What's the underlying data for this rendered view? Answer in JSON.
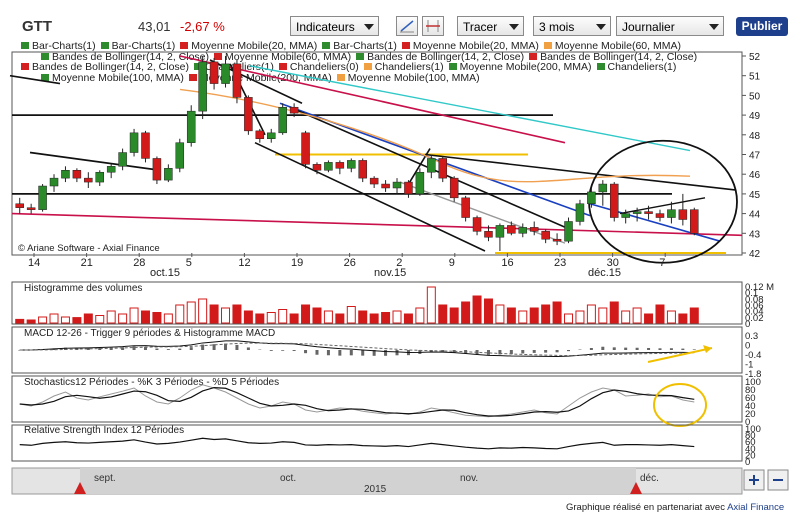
{
  "header": {
    "ticker": "GTT",
    "price": "43,01",
    "change": "-2,67 %",
    "indicators_label": "Indicateurs",
    "draw_label": "Tracer",
    "period_value": "3 mois",
    "interval_value": "Journalier",
    "publish_label": "Publier"
  },
  "legend": {
    "lines": [
      [
        "Bar-Charts(1)",
        "Bar-Charts(1)",
        "Moyenne Mobile(20, MMA)",
        "Bar-Charts(1)",
        "Moyenne Mobile(20, MMA)",
        "Moyenne Mobile(60, MMA)"
      ],
      [
        "Bandes de Bollinger(14, 2, Close)",
        "Moyenne Mobile(60, MMA)",
        "Bandes de Bollinger(14, 2, Close)",
        "Bandes de Bollinger(14, 2, Close)"
      ],
      [
        "Bandes de Bollinger(14, 2, Close)",
        "Chandeliers(1)",
        "Chandeliers(0)",
        "Chandeliers(1)",
        "Moyenne Mobile(200, MMA)",
        "Chandeliers(1)"
      ],
      [
        "Moyenne Mobile(100, MMA)",
        "Moyenne Mobile(200, MMA)",
        "Moyenne Mobile(100, MMA)"
      ]
    ],
    "colors": [
      "#2e8b2e",
      "#2e8b2e",
      "#d42020",
      "#2e8b2e",
      "#d42020",
      "#f0a040"
    ]
  },
  "watermark": "© Ariane Software - Axial Finance",
  "price_axis": [
    "52",
    "51",
    "50",
    "49",
    "48",
    "47",
    "46",
    "45",
    "44",
    "43",
    "42"
  ],
  "date_axis": {
    "days": [
      "14",
      "21",
      "28",
      "5",
      "12",
      "19",
      "26",
      "2",
      "9",
      "16",
      "23",
      "30",
      "7"
    ],
    "months": [
      "oct.15",
      "nov.15",
      "déc.15"
    ]
  },
  "panels": {
    "volume": {
      "title": "Histogramme des volumes",
      "axis": [
        "0.12 M",
        "0.1",
        "0.08",
        "0.06",
        "0.04",
        "0.02",
        "0"
      ]
    },
    "macd": {
      "title": "MACD 12-26 - Trigger 9 périodes & Histogramme MACD",
      "axis": [
        "0.3",
        "0",
        "-0.4",
        "-1",
        "-1.8"
      ]
    },
    "stoch": {
      "title": "Stochastics12 Périodes  -  %K 3 Périodes  -  %D 5 Périodes",
      "axis": [
        "100",
        "80",
        "60",
        "40",
        "20",
        "0"
      ]
    },
    "rsi": {
      "title": "Relative Strength Index 12 Périodes",
      "axis": [
        "100",
        "80",
        "60",
        "40",
        "20",
        "0"
      ]
    }
  },
  "navigator": {
    "months": [
      "sept.",
      "oct.",
      "nov.",
      "déc."
    ],
    "year": "2015"
  },
  "footer": {
    "text": "Graphique réalisé en partenariat avec",
    "partner": "Axial Finance"
  },
  "chart_data": {
    "type": "candlestick",
    "ylim": [
      42,
      52
    ],
    "candles": [
      [
        44.5,
        44.8,
        44.0,
        44.3
      ],
      [
        44.3,
        44.5,
        44.0,
        44.2
      ],
      [
        44.2,
        45.5,
        44.1,
        45.4
      ],
      [
        45.4,
        46.0,
        45.1,
        45.8
      ],
      [
        45.8,
        46.4,
        45.6,
        46.2
      ],
      [
        46.2,
        46.3,
        45.6,
        45.8
      ],
      [
        45.8,
        46.1,
        45.3,
        45.6
      ],
      [
        45.6,
        46.2,
        45.4,
        46.1
      ],
      [
        46.1,
        46.5,
        45.8,
        46.4
      ],
      [
        46.4,
        47.3,
        46.2,
        47.1
      ],
      [
        47.1,
        48.3,
        46.9,
        48.1
      ],
      [
        48.1,
        48.2,
        46.6,
        46.8
      ],
      [
        46.8,
        46.9,
        45.5,
        45.7
      ],
      [
        45.7,
        46.5,
        45.6,
        46.3
      ],
      [
        46.3,
        47.8,
        46.1,
        47.6
      ],
      [
        47.6,
        49.5,
        47.4,
        49.2
      ],
      [
        49.2,
        52.0,
        48.8,
        51.7
      ],
      [
        51.7,
        51.9,
        50.3,
        50.6
      ],
      [
        50.6,
        52.0,
        50.4,
        51.6
      ],
      [
        51.6,
        51.8,
        49.6,
        49.9
      ],
      [
        49.9,
        50.0,
        48.0,
        48.2
      ],
      [
        48.2,
        48.3,
        47.6,
        47.8
      ],
      [
        47.8,
        48.3,
        47.6,
        48.1
      ],
      [
        48.1,
        49.6,
        48.0,
        49.4
      ],
      [
        49.4,
        49.6,
        48.9,
        49.1
      ],
      [
        48.1,
        48.2,
        46.3,
        46.5
      ],
      [
        46.5,
        46.6,
        46.0,
        46.2
      ],
      [
        46.2,
        46.7,
        46.1,
        46.6
      ],
      [
        46.6,
        46.7,
        46.0,
        46.3
      ],
      [
        46.3,
        46.8,
        46.1,
        46.7
      ],
      [
        46.7,
        46.8,
        45.6,
        45.8
      ],
      [
        45.8,
        45.9,
        45.3,
        45.5
      ],
      [
        45.5,
        45.7,
        45.1,
        45.3
      ],
      [
        45.3,
        45.8,
        45.0,
        45.6
      ],
      [
        45.6,
        45.7,
        44.8,
        45.0
      ],
      [
        45.0,
        46.3,
        44.9,
        46.1
      ],
      [
        46.1,
        47.0,
        45.8,
        46.8
      ],
      [
        46.8,
        46.9,
        45.6,
        45.8
      ],
      [
        45.8,
        45.9,
        44.6,
        44.8
      ],
      [
        44.8,
        44.9,
        43.6,
        43.8
      ],
      [
        43.8,
        43.9,
        42.9,
        43.1
      ],
      [
        43.1,
        43.4,
        42.6,
        42.8
      ],
      [
        42.8,
        43.5,
        42.1,
        43.4
      ],
      [
        43.4,
        43.6,
        42.9,
        43.0
      ],
      [
        43.0,
        43.5,
        42.8,
        43.3
      ],
      [
        43.3,
        43.6,
        42.9,
        43.1
      ],
      [
        43.1,
        43.2,
        42.5,
        42.7
      ],
      [
        42.7,
        43.0,
        42.4,
        42.6
      ],
      [
        42.6,
        43.8,
        42.5,
        43.6
      ],
      [
        43.6,
        44.7,
        43.4,
        44.5
      ],
      [
        44.5,
        45.3,
        44.3,
        45.1
      ],
      [
        45.1,
        45.7,
        44.4,
        45.5
      ],
      [
        45.5,
        45.6,
        43.6,
        43.8
      ],
      [
        43.8,
        44.2,
        43.5,
        44.0
      ],
      [
        44.0,
        44.3,
        43.6,
        44.1
      ],
      [
        44.1,
        44.4,
        43.7,
        44.0
      ],
      [
        44.0,
        44.2,
        43.6,
        43.8
      ],
      [
        43.8,
        44.6,
        43.5,
        44.2
      ],
      [
        44.2,
        45.0,
        43.4,
        43.7
      ],
      [
        44.2,
        44.3,
        42.9,
        43.0
      ]
    ],
    "volumes": [
      0.012,
      0.01,
      0.02,
      0.03,
      0.02,
      0.018,
      0.03,
      0.025,
      0.04,
      0.03,
      0.05,
      0.04,
      0.035,
      0.03,
      0.06,
      0.07,
      0.08,
      0.06,
      0.05,
      0.06,
      0.04,
      0.03,
      0.035,
      0.045,
      0.03,
      0.06,
      0.05,
      0.04,
      0.03,
      0.055,
      0.04,
      0.03,
      0.035,
      0.04,
      0.03,
      0.05,
      0.12,
      0.06,
      0.05,
      0.07,
      0.09,
      0.08,
      0.06,
      0.05,
      0.04,
      0.05,
      0.06,
      0.07,
      0.03,
      0.04,
      0.06,
      0.05,
      0.07,
      0.04,
      0.05,
      0.03,
      0.06,
      0.04,
      0.03,
      0.05
    ],
    "stochastic_k": [
      40,
      35,
      45,
      60,
      70,
      55,
      50,
      58,
      65,
      72,
      80,
      60,
      45,
      40,
      55,
      75,
      88,
      80,
      70,
      55,
      40,
      30,
      35,
      45,
      40,
      25,
      20,
      25,
      30,
      28,
      22,
      18,
      15,
      18,
      14,
      20,
      30,
      25,
      18,
      12,
      10,
      8,
      12,
      15,
      20,
      25,
      18,
      15,
      35,
      55,
      70,
      80,
      75,
      60,
      62,
      65,
      58,
      60,
      50,
      45
    ],
    "rsi": [
      48,
      46,
      52,
      55,
      57,
      54,
      53,
      55,
      57,
      59,
      63,
      56,
      50,
      52,
      56,
      62,
      68,
      64,
      66,
      60,
      54,
      52,
      53,
      57,
      55,
      47,
      46,
      48,
      47,
      48,
      45,
      44,
      43,
      45,
      42,
      47,
      52,
      48,
      44,
      40,
      37,
      35,
      38,
      37,
      39,
      38,
      36,
      35,
      42,
      48,
      52,
      55,
      46,
      48,
      48,
      47,
      46,
      48,
      45,
      42
    ]
  }
}
